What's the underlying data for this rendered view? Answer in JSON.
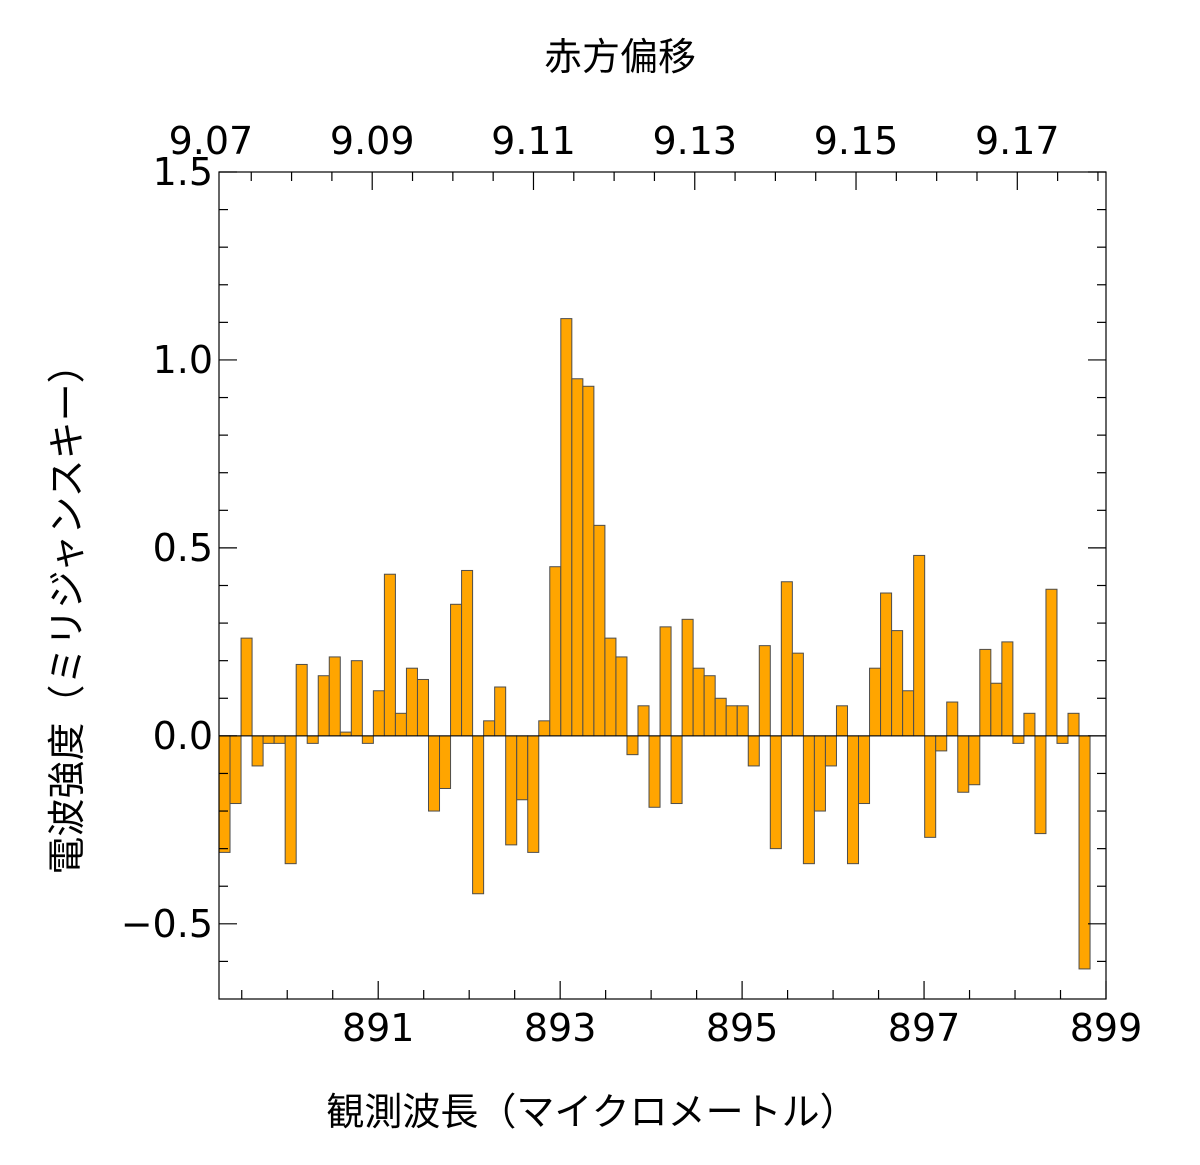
{
  "chart_data": {
    "type": "bar",
    "style": "step-histogram",
    "xlabel": "観測波長（マイクロメートル）",
    "ylabel": "電波強度（ミリジャンスキー）",
    "top_axis_label": "赤方偏移",
    "xlim": [
      889.25,
      899.0
    ],
    "ylim": [
      -0.7,
      1.5
    ],
    "bottom_ticks": [
      "891",
      "893",
      "895",
      "897",
      "899"
    ],
    "bottom_tick_values": [
      891,
      893,
      895,
      897,
      899
    ],
    "top_ticks": [
      "9.07",
      "9.09",
      "9.11",
      "9.13",
      "9.15",
      "9.17"
    ],
    "top_tick_values": [
      9.07,
      9.09,
      9.11,
      9.13,
      9.15,
      9.17
    ],
    "redshift_axis": {
      "z_at_xmin": 9.071,
      "z_at_xmax": 9.181
    },
    "y_ticks": [
      "1.5",
      "1.0",
      "0.5",
      "0.0",
      "−0.5"
    ],
    "y_tick_values": [
      1.5,
      1.0,
      0.5,
      0.0,
      -0.5
    ],
    "bin_width": 0.1212,
    "x_start": 889.25,
    "values": [
      -0.31,
      -0.18,
      0.26,
      -0.08,
      -0.02,
      -0.02,
      -0.34,
      0.19,
      -0.02,
      0.16,
      0.21,
      0.01,
      0.2,
      -0.02,
      0.12,
      0.43,
      0.06,
      0.18,
      0.15,
      -0.2,
      -0.14,
      0.35,
      0.44,
      -0.42,
      0.04,
      0.13,
      -0.29,
      -0.17,
      -0.31,
      0.04,
      0.45,
      1.11,
      0.95,
      0.93,
      0.56,
      0.26,
      0.21,
      -0.05,
      0.08,
      -0.19,
      0.29,
      -0.18,
      0.31,
      0.18,
      0.16,
      0.1,
      0.08,
      0.08,
      -0.08,
      0.24,
      -0.3,
      0.41,
      0.22,
      -0.34,
      -0.2,
      -0.08,
      0.08,
      -0.34,
      -0.18,
      0.18,
      0.38,
      0.28,
      0.12,
      0.48,
      -0.27,
      -0.04,
      0.09,
      -0.15,
      -0.13,
      0.23,
      0.14,
      0.25,
      -0.02,
      0.06,
      -0.26,
      0.39,
      -0.02,
      0.06,
      -0.62
    ],
    "bar_color": "#FFA500",
    "edge_color": "#4d4d4d",
    "grid": false,
    "legend": "none"
  }
}
